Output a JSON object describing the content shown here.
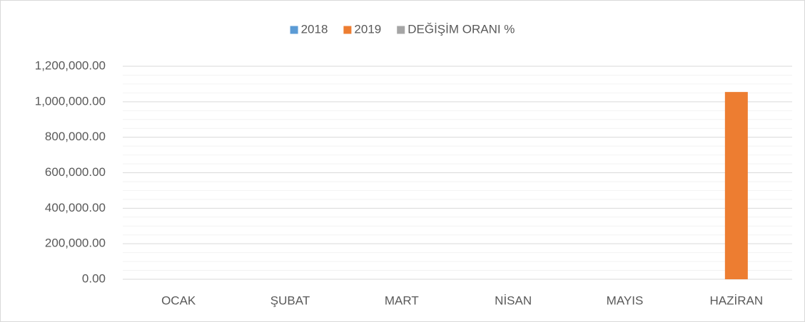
{
  "chart_data": {
    "type": "bar",
    "categories": [
      "OCAK",
      "ŞUBAT",
      "MART",
      "NİSAN",
      "MAYIS",
      "HAZİRAN"
    ],
    "series": [
      {
        "name": "2018",
        "color": "#5b9bd5",
        "values": [
          0,
          0,
          0,
          0,
          0,
          0
        ]
      },
      {
        "name": "2019",
        "color": "#ed7d31",
        "values": [
          0,
          0,
          0,
          0,
          0,
          1055000
        ]
      },
      {
        "name": "DEĞİŞİM ORANI %",
        "color": "#a5a5a5",
        "values": [
          0,
          0,
          0,
          0,
          0,
          0
        ]
      }
    ],
    "ylim": [
      0,
      1200000
    ],
    "yticks": [
      {
        "value": 0,
        "label": "0.00"
      },
      {
        "value": 200000,
        "label": "200,000.00"
      },
      {
        "value": 400000,
        "label": "400,000.00"
      },
      {
        "value": 600000,
        "label": "600,000.00"
      },
      {
        "value": 800000,
        "label": "800,000.00"
      },
      {
        "value": 1000000,
        "label": "1,000,000.00"
      },
      {
        "value": 1200000,
        "label": "1,200,000.00"
      }
    ],
    "grid": true,
    "legend": "top"
  }
}
